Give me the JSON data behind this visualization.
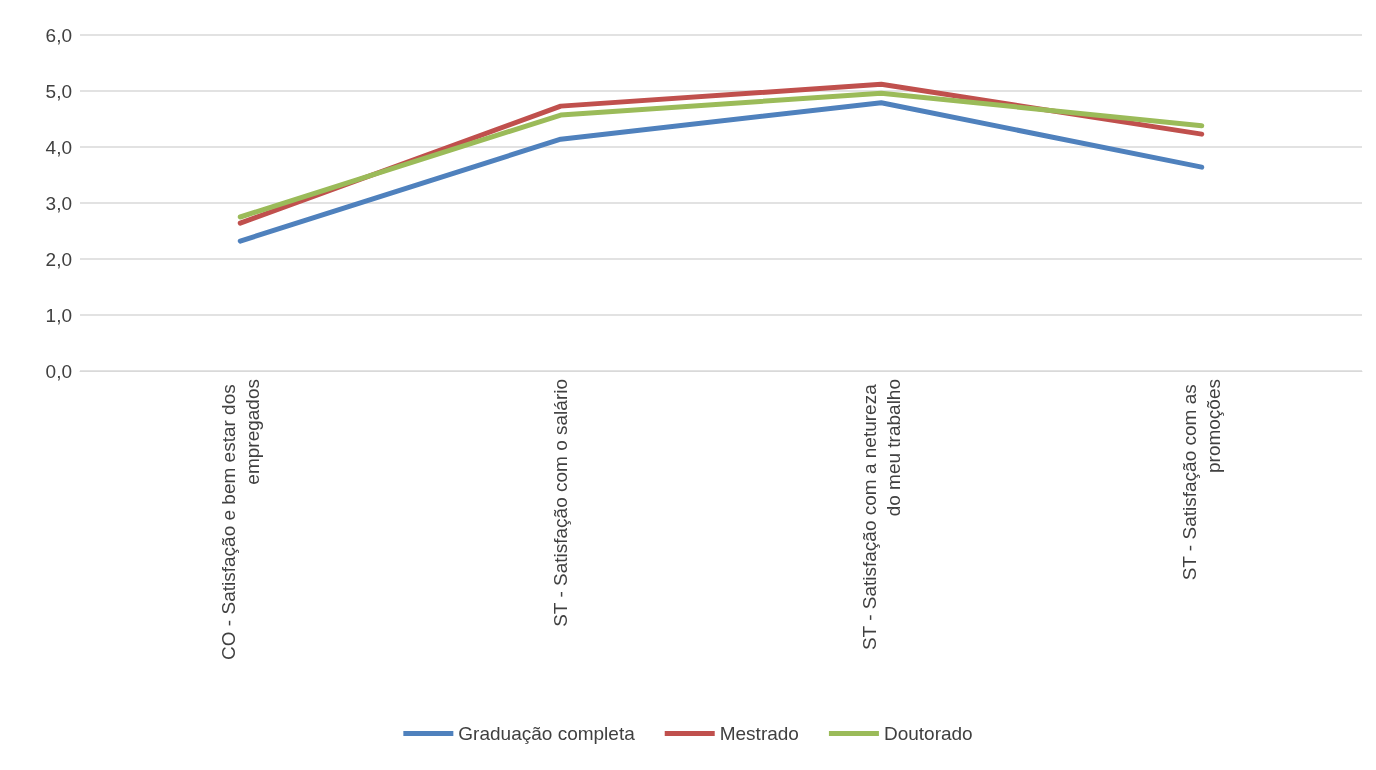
{
  "chart_data": {
    "type": "line",
    "categories": [
      "CO - Satisfação e bem estar dos empregados",
      "ST - Satisfação com o salário",
      "ST - Satisfação com a netureza do meu trabalho",
      "ST - Satisfação com as promoções"
    ],
    "series": [
      {
        "name": "Graduação completa",
        "color": "#4f81bd",
        "values": [
          2.32,
          4.14,
          4.79,
          3.64
        ]
      },
      {
        "name": "Mestrado",
        "color": "#c0504d",
        "values": [
          2.64,
          4.73,
          5.12,
          4.23
        ]
      },
      {
        "name": "Doutorado",
        "color": "#9bbb59",
        "values": [
          2.75,
          4.57,
          4.96,
          4.38
        ]
      }
    ],
    "ylim": [
      0,
      6
    ],
    "yticks": [
      {
        "value": 0,
        "label": "0,0"
      },
      {
        "value": 1,
        "label": "1,0"
      },
      {
        "value": 2,
        "label": "2,0"
      },
      {
        "value": 3,
        "label": "3,0"
      },
      {
        "value": 4,
        "label": "4,0"
      },
      {
        "value": 5,
        "label": "5,0"
      },
      {
        "value": 6,
        "label": "6,0"
      }
    ],
    "grid": "y",
    "legend": "bottom",
    "marker": "none",
    "line_style": "solid"
  }
}
